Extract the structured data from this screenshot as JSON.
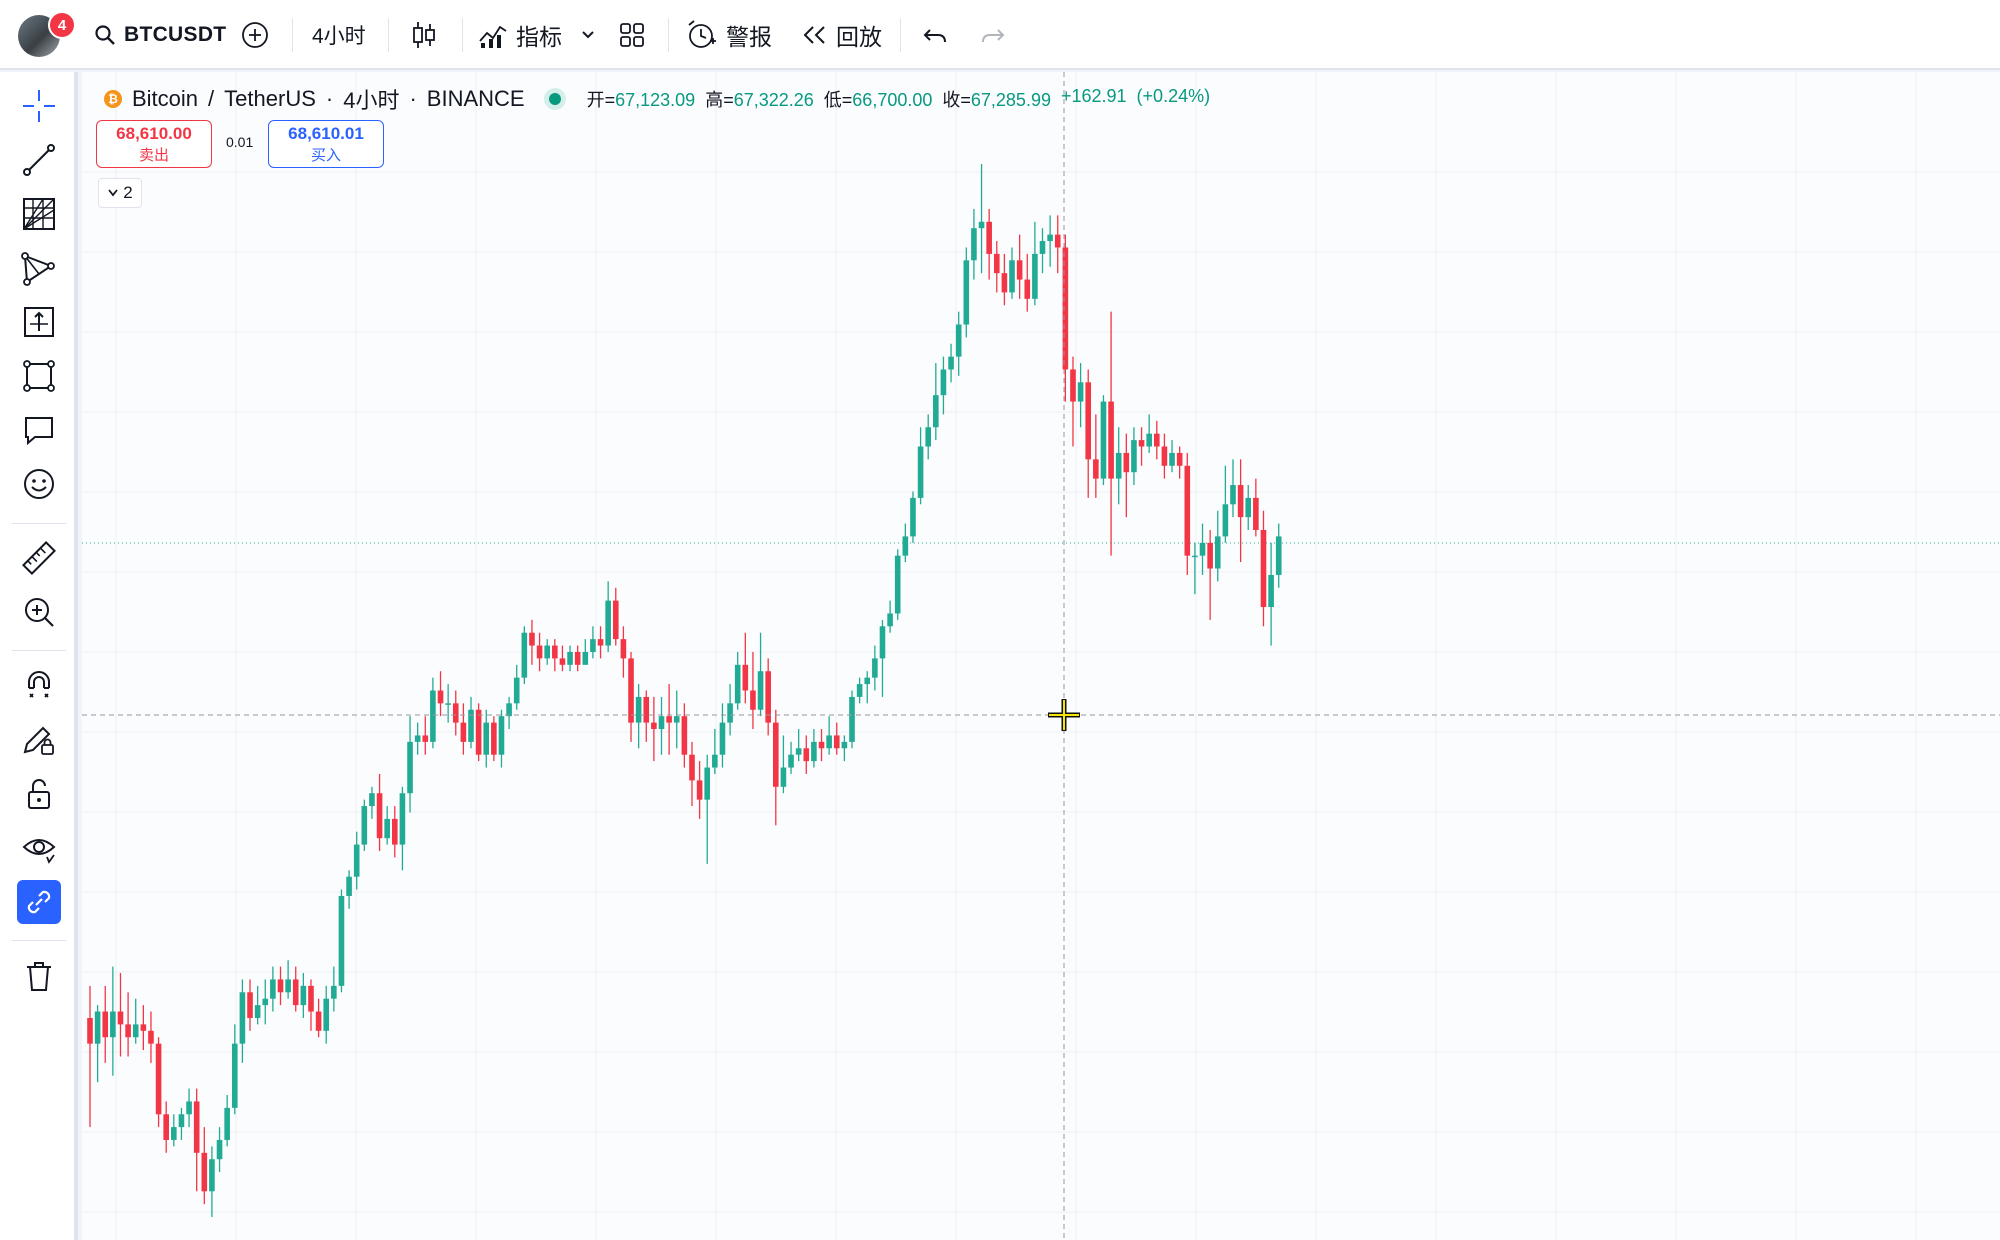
{
  "toolbar": {
    "avatar_badge": "4",
    "symbol": "BTCUSDT",
    "interval": "4小时",
    "indicators_label": "指标",
    "alerts_label": "警报",
    "replay_label": "回放"
  },
  "legend": {
    "symbol_name": "Bitcoin",
    "quote_name": "TetherUS",
    "interval": "4小时",
    "exchange": "BINANCE",
    "open_label": "开",
    "open_value": "67,123.09",
    "high_label": "高",
    "high_value": "67,322.26",
    "low_label": "低",
    "low_value": "66,700.00",
    "close_label": "收",
    "close_value": "67,285.99",
    "change": "+162.91",
    "change_pct": "(+0.24%)"
  },
  "trade": {
    "sell_price": "68,610.00",
    "sell_label": "卖出",
    "spread": "0.01",
    "buy_price": "68,610.01",
    "buy_label": "买入"
  },
  "indicators_count": "2",
  "colors": {
    "up": "#22ab94",
    "down": "#f23645",
    "accent": "#2962ff"
  },
  "chart_data": {
    "type": "candlestick",
    "y_scale": "linear (unlabeled)",
    "grid": true,
    "candles": [
      [
        39,
        35,
        22,
        44
      ],
      [
        35,
        40,
        29,
        41
      ],
      [
        40,
        36,
        32,
        44
      ],
      [
        36,
        40,
        30,
        47
      ],
      [
        40,
        38,
        33,
        46
      ],
      [
        38,
        36,
        33,
        43
      ],
      [
        36,
        38,
        35,
        42
      ],
      [
        38,
        37,
        34,
        41
      ],
      [
        37,
        35,
        32,
        40
      ],
      [
        35,
        24,
        22,
        36
      ],
      [
        24,
        20,
        18,
        26
      ],
      [
        20,
        22,
        19,
        24
      ],
      [
        22,
        24,
        20,
        25
      ],
      [
        24,
        26,
        22,
        28
      ],
      [
        26,
        18,
        12,
        28
      ],
      [
        18,
        12,
        10,
        22
      ],
      [
        12,
        17,
        8,
        19
      ],
      [
        17,
        20,
        15,
        22
      ],
      [
        20,
        25,
        19,
        27
      ],
      [
        25,
        35,
        24,
        38
      ],
      [
        35,
        43,
        32,
        45
      ],
      [
        43,
        39,
        37,
        45
      ],
      [
        39,
        41,
        38,
        44
      ],
      [
        41,
        42,
        38,
        45
      ],
      [
        42,
        45,
        40,
        47
      ],
      [
        45,
        43,
        41,
        47
      ],
      [
        43,
        45,
        42,
        48
      ],
      [
        45,
        41,
        40,
        47
      ],
      [
        41,
        44,
        39,
        46
      ],
      [
        44,
        40,
        37,
        45
      ],
      [
        40,
        37,
        36,
        42
      ],
      [
        37,
        42,
        35,
        44
      ],
      [
        42,
        44,
        40,
        47
      ],
      [
        44,
        58,
        43,
        59
      ],
      [
        58,
        61,
        56,
        62
      ],
      [
        61,
        66,
        59,
        68
      ],
      [
        66,
        72,
        65,
        73
      ],
      [
        72,
        74,
        70,
        75
      ],
      [
        74,
        67,
        65,
        77
      ],
      [
        67,
        70,
        66,
        72
      ],
      [
        70,
        66,
        64,
        72
      ],
      [
        66,
        74,
        62,
        75
      ],
      [
        74,
        82,
        71,
        86
      ],
      [
        82,
        83,
        80,
        85
      ],
      [
        83,
        82,
        80,
        86
      ],
      [
        82,
        90,
        81,
        92
      ],
      [
        90,
        88,
        86,
        93
      ],
      [
        88,
        88,
        85,
        91
      ],
      [
        88,
        85,
        83,
        90
      ],
      [
        85,
        82,
        80,
        88
      ],
      [
        82,
        87,
        81,
        89
      ],
      [
        87,
        80,
        79,
        88
      ],
      [
        80,
        85,
        78,
        87
      ],
      [
        85,
        80,
        79,
        86
      ],
      [
        80,
        86,
        78,
        87
      ],
      [
        86,
        88,
        84,
        89
      ],
      [
        88,
        92,
        87,
        94
      ],
      [
        92,
        99,
        91,
        100
      ],
      [
        99,
        97,
        94,
        101
      ],
      [
        97,
        95,
        93,
        99
      ],
      [
        95,
        97,
        94,
        98
      ],
      [
        97,
        95,
        93,
        98
      ],
      [
        95,
        94,
        93,
        97
      ],
      [
        94,
        96,
        93,
        97
      ],
      [
        96,
        94,
        93,
        97
      ],
      [
        94,
        96,
        94,
        98
      ],
      [
        96,
        98,
        95,
        100
      ],
      [
        98,
        97,
        95,
        100
      ],
      [
        97,
        104,
        96,
        107
      ],
      [
        104,
        98,
        97,
        106
      ],
      [
        98,
        95,
        92,
        100
      ],
      [
        95,
        85,
        82,
        96
      ],
      [
        85,
        89,
        81,
        91
      ],
      [
        89,
        85,
        82,
        90
      ],
      [
        85,
        84,
        79,
        89
      ],
      [
        84,
        86,
        80,
        89
      ],
      [
        86,
        85,
        80,
        91
      ],
      [
        85,
        86,
        81,
        90
      ],
      [
        86,
        80,
        78,
        88
      ],
      [
        80,
        76,
        72,
        82
      ],
      [
        76,
        73,
        70,
        79
      ],
      [
        73,
        78,
        63,
        80
      ],
      [
        78,
        80,
        77,
        84
      ],
      [
        80,
        85,
        78,
        88
      ],
      [
        85,
        88,
        83,
        91
      ],
      [
        88,
        94,
        87,
        96
      ],
      [
        94,
        90,
        88,
        99
      ],
      [
        90,
        87,
        84,
        96
      ],
      [
        87,
        93,
        86,
        99
      ],
      [
        93,
        85,
        83,
        95
      ],
      [
        85,
        75,
        69,
        87
      ],
      [
        75,
        78,
        74,
        83
      ],
      [
        78,
        80,
        77,
        82
      ],
      [
        80,
        81,
        79,
        84
      ],
      [
        81,
        79,
        77,
        83
      ],
      [
        79,
        82,
        78,
        84
      ],
      [
        82,
        81,
        79,
        84
      ],
      [
        81,
        83,
        80,
        86
      ],
      [
        83,
        81,
        80,
        85
      ],
      [
        81,
        82,
        79,
        83
      ],
      [
        82,
        89,
        81,
        90
      ],
      [
        89,
        91,
        88,
        92
      ],
      [
        91,
        92,
        88,
        93
      ],
      [
        92,
        95,
        90,
        97
      ],
      [
        95,
        100,
        89,
        101
      ],
      [
        100,
        102,
        99,
        104
      ],
      [
        102,
        111,
        101,
        112
      ],
      [
        111,
        114,
        110,
        116
      ],
      [
        114,
        120,
        113,
        121
      ],
      [
        120,
        128,
        119,
        131
      ],
      [
        128,
        131,
        126,
        133
      ],
      [
        131,
        136,
        129,
        141
      ],
      [
        136,
        140,
        133,
        142
      ],
      [
        140,
        142,
        138,
        144
      ],
      [
        142,
        147,
        139,
        149
      ],
      [
        147,
        157,
        145,
        159
      ],
      [
        157,
        162,
        154,
        165
      ],
      [
        162,
        163,
        155,
        172
      ],
      [
        163,
        158,
        154,
        165
      ],
      [
        158,
        155,
        152,
        160
      ],
      [
        155,
        152,
        150,
        158
      ],
      [
        152,
        157,
        151,
        159
      ],
      [
        157,
        154,
        151,
        161
      ],
      [
        154,
        151,
        149,
        158
      ],
      [
        151,
        158,
        150,
        163
      ],
      [
        158,
        160,
        155,
        162
      ],
      [
        160,
        161,
        156,
        164
      ],
      [
        161,
        159,
        155,
        164
      ],
      [
        159,
        140,
        135,
        161
      ],
      [
        140,
        135,
        128,
        142
      ],
      [
        135,
        138,
        131,
        141
      ],
      [
        138,
        126,
        120,
        140
      ],
      [
        126,
        123,
        120,
        133
      ],
      [
        123,
        135,
        122,
        136
      ],
      [
        135,
        123,
        111,
        149
      ],
      [
        123,
        127,
        119,
        131
      ],
      [
        127,
        124,
        117,
        130
      ],
      [
        124,
        129,
        122,
        131
      ],
      [
        129,
        128,
        125,
        131
      ],
      [
        128,
        130,
        127,
        133
      ],
      [
        130,
        128,
        126,
        132
      ],
      [
        128,
        125,
        123,
        130
      ],
      [
        125,
        127,
        124,
        129
      ],
      [
        127,
        125,
        123,
        128
      ],
      [
        125,
        111,
        108,
        127
      ],
      [
        111,
        111,
        105,
        113
      ],
      [
        111,
        113,
        108,
        116
      ],
      [
        113,
        109,
        101,
        115
      ],
      [
        109,
        114,
        107,
        118
      ],
      [
        114,
        119,
        113,
        125
      ],
      [
        119,
        122,
        117,
        126
      ],
      [
        122,
        117,
        110,
        126
      ],
      [
        117,
        120,
        115,
        122
      ],
      [
        120,
        115,
        114,
        123
      ],
      [
        115,
        103,
        100,
        118
      ],
      [
        103,
        108,
        97,
        113
      ],
      [
        108,
        114,
        106,
        116
      ]
    ]
  }
}
